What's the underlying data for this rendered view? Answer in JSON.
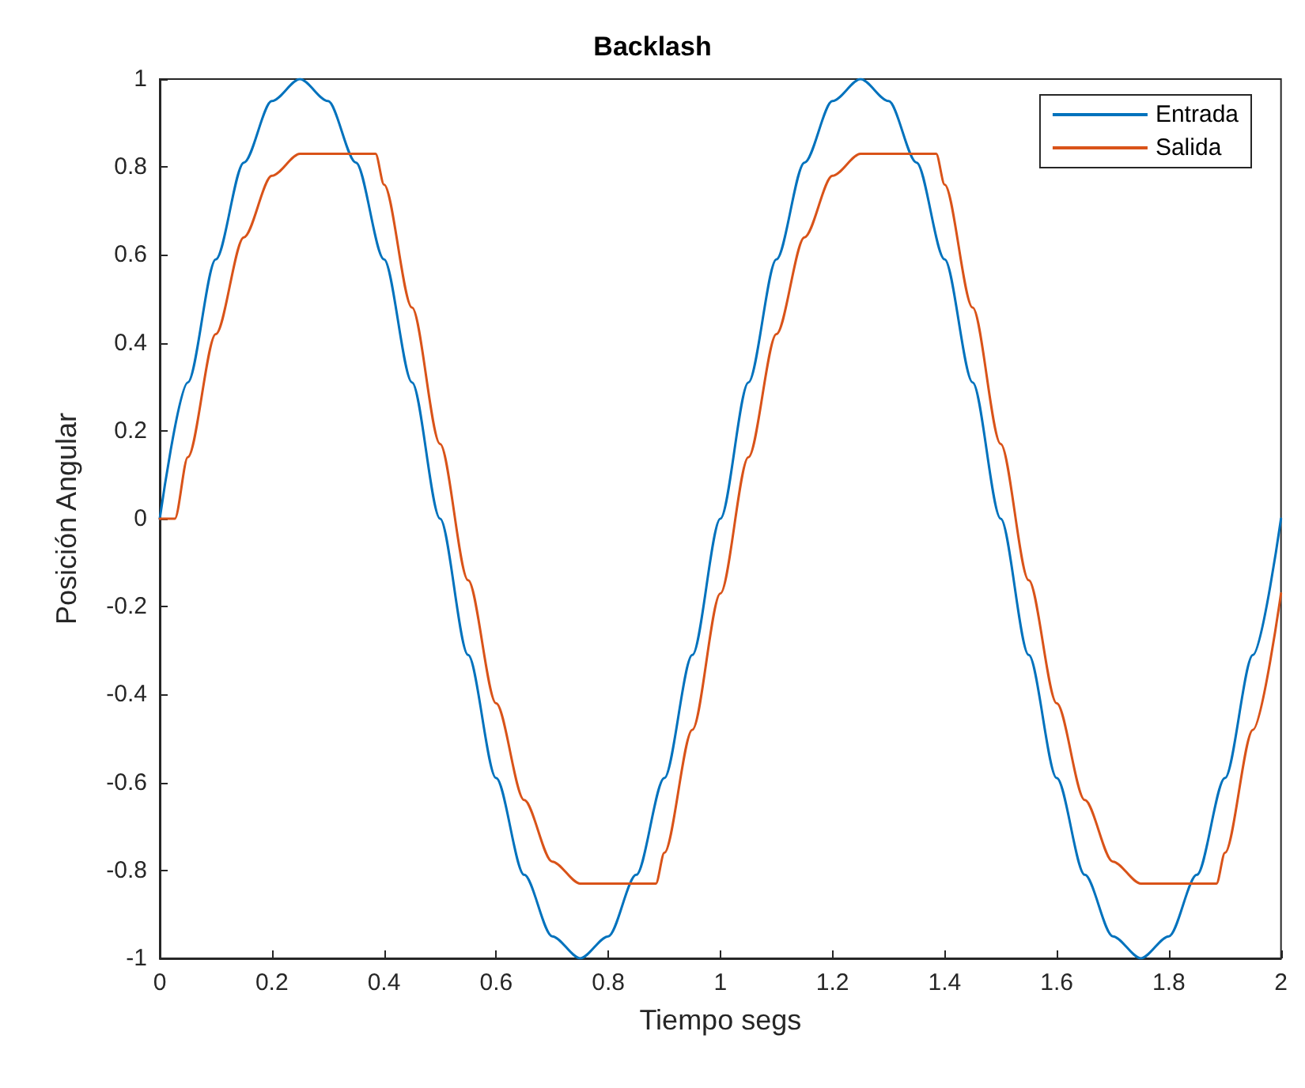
{
  "chart_data": {
    "type": "line",
    "title": "Backlash",
    "xlabel": "Tiempo segs",
    "ylabel": "Posición Angular",
    "xlim": [
      0,
      2
    ],
    "xticks": [
      0,
      0.2,
      0.4,
      0.6,
      0.8,
      1,
      1.2,
      1.4,
      1.6,
      1.8,
      2
    ],
    "ylim": [
      -1,
      1
    ],
    "yticks": [
      -1,
      -0.8,
      -0.6,
      -0.4,
      -0.2,
      0,
      0.2,
      0.4,
      0.6,
      0.8,
      1
    ],
    "grid": false,
    "legend": "top right",
    "marker": "none",
    "series": [
      {
        "name": "Entrada",
        "color": "#0072bd",
        "x": [
          0,
          0.05,
          0.1,
          0.15,
          0.2,
          0.25,
          0.3,
          0.35,
          0.4,
          0.45,
          0.5,
          0.55,
          0.6,
          0.65,
          0.7,
          0.75,
          0.8,
          0.85,
          0.9,
          0.95,
          1,
          1.05,
          1.1,
          1.15,
          1.2,
          1.25,
          1.3,
          1.35,
          1.4,
          1.45,
          1.5,
          1.55,
          1.6,
          1.65,
          1.7,
          1.75,
          1.8,
          1.85,
          1.9,
          1.95,
          2
        ],
        "values": [
          0,
          0.31,
          0.59,
          0.81,
          0.95,
          1,
          0.95,
          0.81,
          0.59,
          0.31,
          0,
          -0.31,
          -0.59,
          -0.81,
          -0.95,
          -1,
          -0.95,
          -0.81,
          -0.59,
          -0.31,
          0,
          0.31,
          0.59,
          0.81,
          0.95,
          1,
          0.95,
          0.81,
          0.59,
          0.31,
          0,
          -0.31,
          -0.59,
          -0.81,
          -0.95,
          -1,
          -0.95,
          -0.81,
          -0.59,
          -0.31,
          0
        ]
      },
      {
        "name": "Salida",
        "color": "#d95319",
        "x": [
          0,
          0.027,
          0.05,
          0.1,
          0.15,
          0.2,
          0.25,
          0.385,
          0.4,
          0.45,
          0.5,
          0.55,
          0.6,
          0.65,
          0.7,
          0.75,
          0.885,
          0.9,
          0.95,
          1,
          1.05,
          1.1,
          1.15,
          1.2,
          1.25,
          1.385,
          1.4,
          1.45,
          1.5,
          1.55,
          1.6,
          1.65,
          1.7,
          1.75,
          1.885,
          1.9,
          1.95,
          2
        ],
        "values": [
          0,
          0,
          0.14,
          0.42,
          0.64,
          0.78,
          0.83,
          0.83,
          0.76,
          0.48,
          0.17,
          -0.14,
          -0.42,
          -0.64,
          -0.78,
          -0.83,
          -0.83,
          -0.76,
          -0.48,
          -0.17,
          0.14,
          0.42,
          0.64,
          0.78,
          0.83,
          0.83,
          0.76,
          0.48,
          0.17,
          -0.14,
          -0.42,
          -0.64,
          -0.78,
          -0.83,
          -0.83,
          -0.76,
          -0.48,
          -0.17
        ]
      }
    ]
  }
}
